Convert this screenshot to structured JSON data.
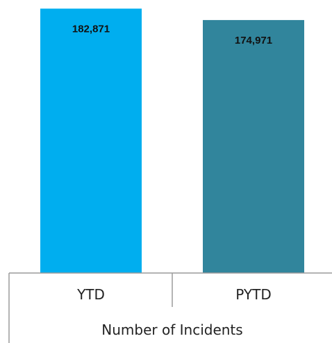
{
  "chart_data": {
    "type": "bar",
    "categories": [
      "YTD",
      "PYTD"
    ],
    "values": [
      182871,
      174971
    ],
    "value_labels": [
      "182,871",
      "174,971"
    ],
    "group_label": "Number of Incidents",
    "title": "",
    "xlabel": "",
    "ylabel": "",
    "ylim": [
      0,
      185000
    ],
    "grid": false,
    "legend": "none",
    "colors": [
      "#00AEEF",
      "#31859C"
    ]
  }
}
